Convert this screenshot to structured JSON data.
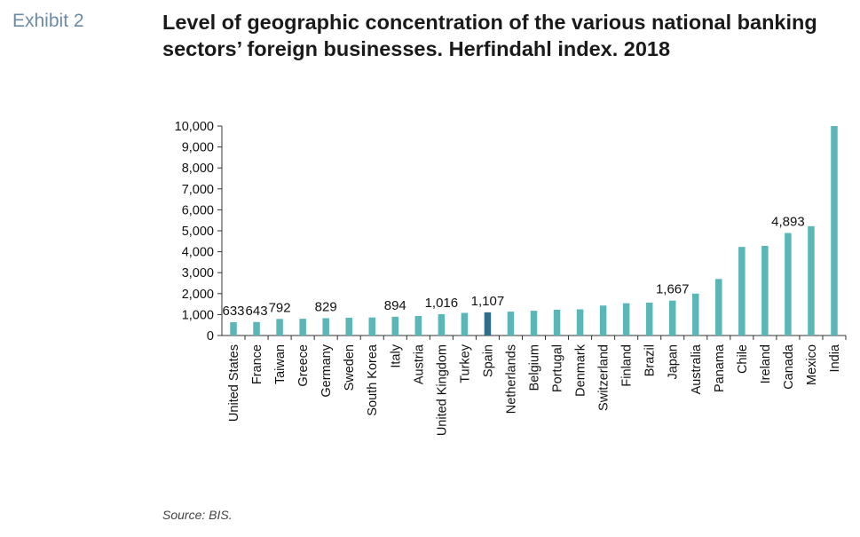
{
  "header": {
    "exhibit": "Exhibit 2",
    "title": "Level of geographic concentration of the various national banking sectors’ foreign businesses. Herfindahl index. 2018"
  },
  "footer": {
    "source": "Source: BIS."
  },
  "colors": {
    "bar": "#5bb6b8",
    "highlight": "#2e6e88",
    "axis": "#333333"
  },
  "chart_data": {
    "type": "bar",
    "title": "Level of geographic concentration of the various national banking sectors’ foreign businesses. Herfindahl index. 2018",
    "xlabel": "",
    "ylabel": "",
    "ylim": [
      0,
      10000
    ],
    "yticks": [
      0,
      1000,
      2000,
      3000,
      4000,
      5000,
      6000,
      7000,
      8000,
      9000,
      10000
    ],
    "ytick_labels": [
      "0",
      "1,000",
      "2,000",
      "3,000",
      "4,000",
      "5,000",
      "6,000",
      "7,000",
      "8,000",
      "9,000",
      "10,000"
    ],
    "grid": false,
    "legend": "none",
    "categories": [
      "United States",
      "France",
      "Taiwan",
      "Greece",
      "Germany",
      "Sweden",
      "South Korea",
      "Italy",
      "Austria",
      "United Kingdom",
      "Turkey",
      "Spain",
      "Netherlands",
      "Belgium",
      "Portugal",
      "Denmark",
      "Switzerland",
      "Finland",
      "Brazil",
      "Japan",
      "Australia",
      "Panama",
      "Chile",
      "Ireland",
      "Canada",
      "Mexico",
      "India"
    ],
    "values": [
      633,
      643,
      792,
      800,
      829,
      850,
      860,
      894,
      930,
      1016,
      1080,
      1107,
      1140,
      1180,
      1230,
      1250,
      1430,
      1540,
      1570,
      1667,
      2000,
      2700,
      4230,
      4280,
      4893,
      5220,
      10000
    ],
    "highlight": "Spain",
    "data_labels": [
      {
        "category": "United States",
        "text": "633"
      },
      {
        "category": "France",
        "text": "643"
      },
      {
        "category": "Taiwan",
        "text": "792"
      },
      {
        "category": "Germany",
        "text": "829"
      },
      {
        "category": "Italy",
        "text": "894"
      },
      {
        "category": "United Kingdom",
        "text": "1,016"
      },
      {
        "category": "Spain",
        "text": "1,107"
      },
      {
        "category": "Japan",
        "text": "1,667"
      },
      {
        "category": "Canada",
        "text": "4,893"
      }
    ]
  }
}
